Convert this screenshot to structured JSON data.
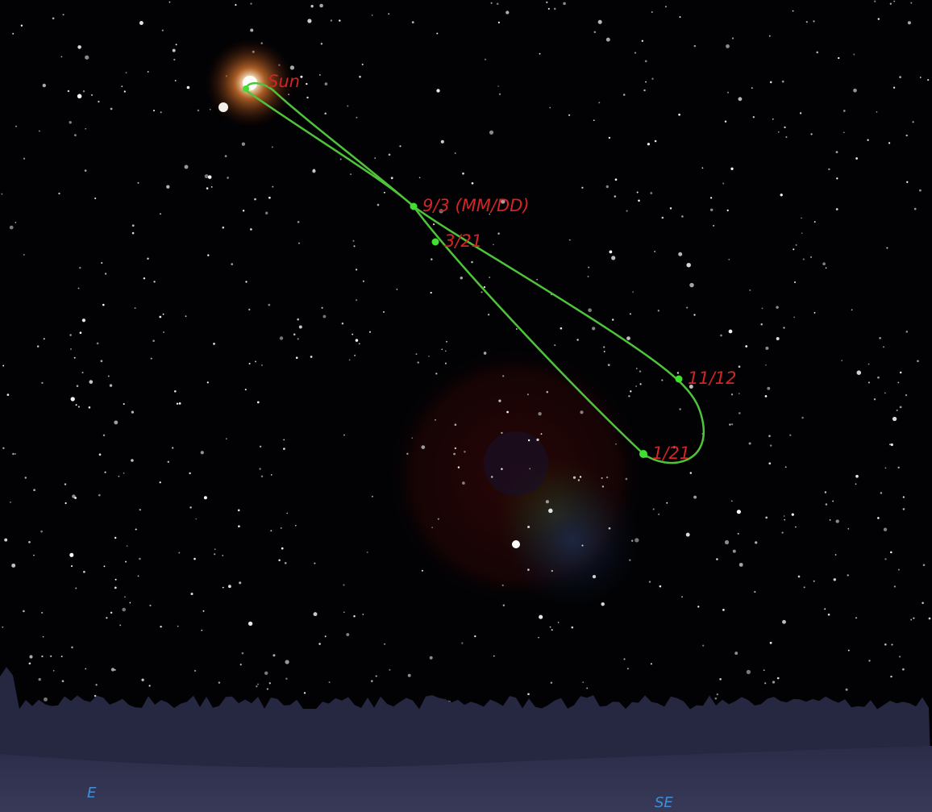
{
  "sky": {
    "sun_label": "Sun",
    "analemma_points": [
      "9/3 (MM/DD)",
      "3/21",
      "11/12",
      "1/21"
    ]
  },
  "compass": [
    "E",
    "SE"
  ]
}
